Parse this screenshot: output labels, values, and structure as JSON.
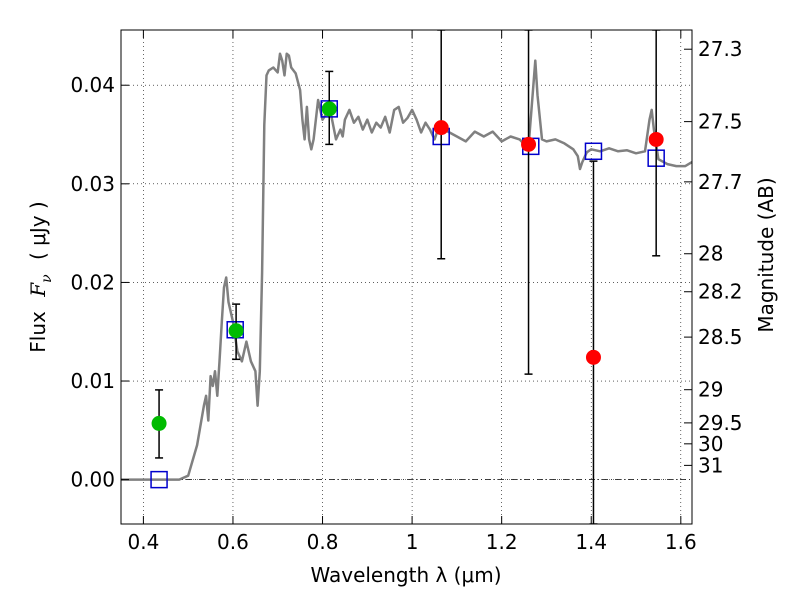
{
  "chart_data": {
    "type": "scatter",
    "xlabel": "Wavelength  λ (μm)",
    "ylabel_text": "Flux",
    "ylabel_symbol": "F",
    "ylabel_subscript": "ν",
    "ylabel_unit": "( μJy )",
    "y2label": "Magnitude (AB)",
    "xlim": [
      0.35,
      1.625
    ],
    "ylim": [
      -0.0045,
      0.0456
    ],
    "grid": true,
    "x_ticks": [
      0.4,
      0.6,
      0.8,
      1.0,
      1.2,
      1.4,
      1.6
    ],
    "x_tick_labels": [
      "0.4",
      "0.6",
      "0.8",
      "1",
      "1.2",
      "1.4",
      "1.6"
    ],
    "y_ticks": [
      0.0,
      0.01,
      0.02,
      0.03,
      0.04
    ],
    "y_tick_labels": [
      "0.00",
      "0.01",
      "0.02",
      "0.03",
      "0.04"
    ],
    "mag_ticks": [
      "27.3",
      "27.5",
      "27.7",
      "28",
      "28.2",
      "28.5",
      "29",
      "29.5",
      "30",
      "31"
    ],
    "colors": {
      "spectrum": "#808080",
      "optical_points": "#00bb00",
      "nir_points": "#ff0000",
      "model_squares": "#0000cc",
      "error_bars": "#000000"
    },
    "series": [
      {
        "kind": "line",
        "points": [
          [
            0.35,
            0.0
          ],
          [
            0.48,
            0.0
          ],
          [
            0.5,
            0.0004
          ],
          [
            0.52,
            0.0035
          ],
          [
            0.535,
            0.0075
          ],
          [
            0.54,
            0.0085
          ],
          [
            0.545,
            0.006
          ],
          [
            0.55,
            0.0105
          ],
          [
            0.555,
            0.0095
          ],
          [
            0.56,
            0.011
          ],
          [
            0.565,
            0.0085
          ],
          [
            0.57,
            0.012
          ],
          [
            0.575,
            0.016
          ],
          [
            0.58,
            0.0195
          ],
          [
            0.585,
            0.0205
          ],
          [
            0.59,
            0.018
          ],
          [
            0.6,
            0.016
          ],
          [
            0.61,
            0.013
          ],
          [
            0.62,
            0.012
          ],
          [
            0.63,
            0.014
          ],
          [
            0.64,
            0.012
          ],
          [
            0.65,
            0.011
          ],
          [
            0.655,
            0.0075
          ],
          [
            0.66,
            0.011
          ],
          [
            0.665,
            0.021
          ],
          [
            0.67,
            0.036
          ],
          [
            0.675,
            0.041
          ],
          [
            0.68,
            0.0415
          ],
          [
            0.69,
            0.0418
          ],
          [
            0.7,
            0.0413
          ],
          [
            0.705,
            0.0432
          ],
          [
            0.71,
            0.0425
          ],
          [
            0.715,
            0.041
          ],
          [
            0.72,
            0.0432
          ],
          [
            0.725,
            0.043
          ],
          [
            0.73,
            0.0418
          ],
          [
            0.74,
            0.0412
          ],
          [
            0.75,
            0.0395
          ],
          [
            0.755,
            0.0365
          ],
          [
            0.76,
            0.0345
          ],
          [
            0.765,
            0.0378
          ],
          [
            0.77,
            0.0345
          ],
          [
            0.775,
            0.0335
          ],
          [
            0.78,
            0.0345
          ],
          [
            0.79,
            0.0385
          ],
          [
            0.8,
            0.0365
          ],
          [
            0.81,
            0.0372
          ],
          [
            0.82,
            0.0368
          ],
          [
            0.83,
            0.0345
          ],
          [
            0.84,
            0.0355
          ],
          [
            0.845,
            0.0348
          ],
          [
            0.85,
            0.0365
          ],
          [
            0.86,
            0.0375
          ],
          [
            0.87,
            0.0362
          ],
          [
            0.88,
            0.0368
          ],
          [
            0.89,
            0.0355
          ],
          [
            0.9,
            0.0365
          ],
          [
            0.91,
            0.0352
          ],
          [
            0.92,
            0.0362
          ],
          [
            0.93,
            0.0357
          ],
          [
            0.94,
            0.0368
          ],
          [
            0.95,
            0.0352
          ],
          [
            0.96,
            0.0375
          ],
          [
            0.97,
            0.0378
          ],
          [
            0.98,
            0.0362
          ],
          [
            0.99,
            0.0367
          ],
          [
            1.0,
            0.0375
          ],
          [
            1.01,
            0.0365
          ],
          [
            1.02,
            0.0352
          ],
          [
            1.03,
            0.0362
          ],
          [
            1.04,
            0.0355
          ],
          [
            1.05,
            0.0345
          ],
          [
            1.06,
            0.0358
          ],
          [
            1.08,
            0.0353
          ],
          [
            1.1,
            0.0348
          ],
          [
            1.12,
            0.0343
          ],
          [
            1.14,
            0.0353
          ],
          [
            1.16,
            0.0348
          ],
          [
            1.18,
            0.0353
          ],
          [
            1.2,
            0.0343
          ],
          [
            1.22,
            0.0348
          ],
          [
            1.24,
            0.0345
          ],
          [
            1.255,
            0.0338
          ],
          [
            1.26,
            0.0337
          ],
          [
            1.27,
            0.0395
          ],
          [
            1.275,
            0.0425
          ],
          [
            1.28,
            0.039
          ],
          [
            1.29,
            0.0345
          ],
          [
            1.3,
            0.0343
          ],
          [
            1.32,
            0.0345
          ],
          [
            1.34,
            0.0341
          ],
          [
            1.36,
            0.0335
          ],
          [
            1.37,
            0.0328
          ],
          [
            1.375,
            0.0315
          ],
          [
            1.38,
            0.0322
          ],
          [
            1.39,
            0.0332
          ],
          [
            1.4,
            0.0335
          ],
          [
            1.42,
            0.0333
          ],
          [
            1.44,
            0.0336
          ],
          [
            1.46,
            0.0333
          ],
          [
            1.48,
            0.0334
          ],
          [
            1.5,
            0.0331
          ],
          [
            1.52,
            0.0333
          ],
          [
            1.53,
            0.0365
          ],
          [
            1.535,
            0.0375
          ],
          [
            1.54,
            0.0355
          ],
          [
            1.55,
            0.0325
          ],
          [
            1.57,
            0.032
          ],
          [
            1.59,
            0.0318
          ],
          [
            1.61,
            0.0318
          ],
          [
            1.625,
            0.0322
          ]
        ]
      },
      {
        "kind": "squares",
        "points": [
          [
            0.435,
            0.0
          ],
          [
            0.605,
            0.0152
          ],
          [
            0.815,
            0.0376
          ],
          [
            1.065,
            0.0348
          ],
          [
            1.265,
            0.0338
          ],
          [
            1.405,
            0.0333
          ],
          [
            1.545,
            0.0326
          ]
        ]
      },
      {
        "kind": "errorbars",
        "points": [
          [
            0.435,
            0.0057,
            0.0022,
            0.0091
          ],
          [
            0.607,
            0.0151,
            0.0122,
            0.0178
          ],
          [
            0.815,
            0.0376,
            0.034,
            0.0414
          ],
          [
            1.065,
            0.0357,
            0.0224,
            0.0456
          ],
          [
            1.26,
            0.034,
            0.0107,
            0.0456
          ],
          [
            1.405,
            0.0124,
            -0.0045,
            0.0323
          ],
          [
            1.545,
            0.0345,
            0.0227,
            0.0456
          ]
        ]
      },
      {
        "kind": "optical_points",
        "points": [
          [
            0.435,
            0.0057
          ],
          [
            0.607,
            0.0151
          ],
          [
            0.815,
            0.0376
          ]
        ]
      },
      {
        "kind": "nir_points",
        "points": [
          [
            1.065,
            0.0357
          ],
          [
            1.26,
            0.034
          ],
          [
            1.405,
            0.0124
          ],
          [
            1.545,
            0.0345
          ]
        ]
      }
    ]
  }
}
